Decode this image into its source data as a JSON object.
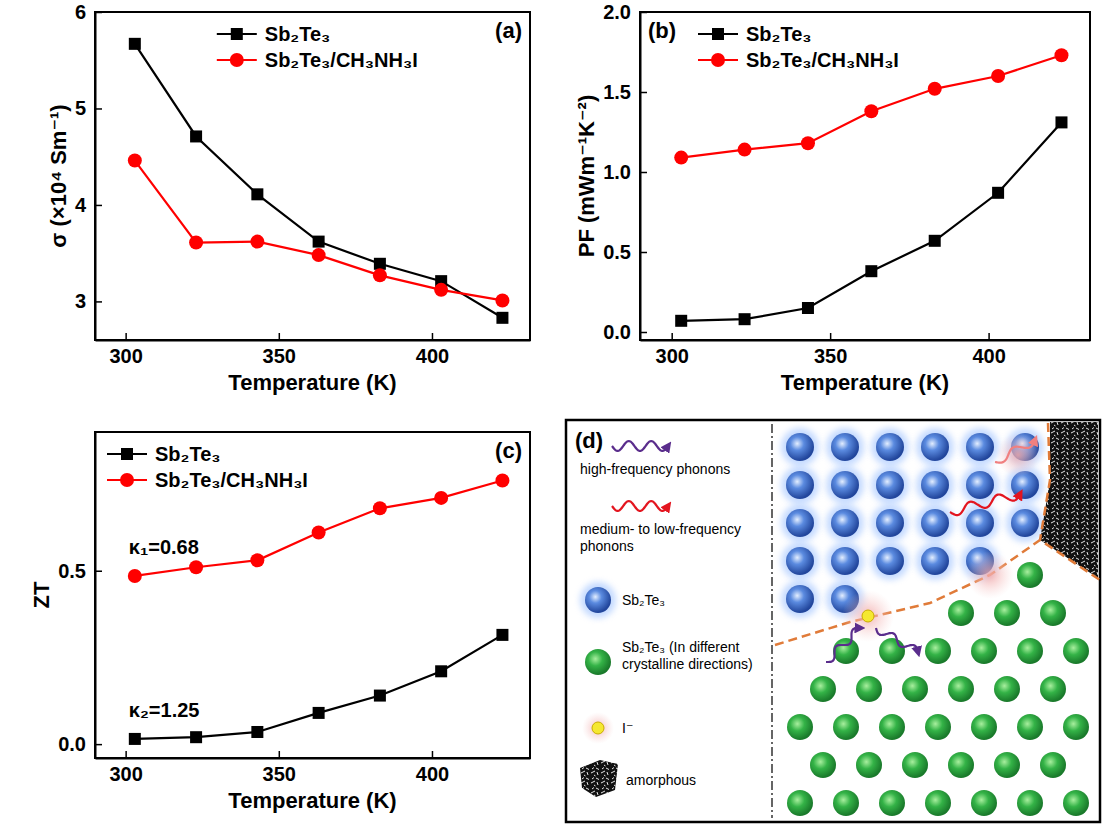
{
  "chart_data": [
    {
      "type": "line",
      "title": "(a)",
      "x_label": "Temperature (K)",
      "y_label": "σ (×10⁴ Sm⁻¹)",
      "x": [
        303,
        323,
        343,
        363,
        383,
        403,
        423
      ],
      "series": [
        {
          "name": "Sb₂Te₃",
          "color": "#000000",
          "marker": "square",
          "line_style": "solid",
          "values": [
            5.67,
            4.71,
            4.11,
            3.62,
            3.39,
            3.21,
            2.83
          ]
        },
        {
          "name": "Sb₂Te₃/CH₃NH₃I",
          "color": "#ff0000",
          "marker": "circle",
          "line_style": "solid",
          "values": [
            4.46,
            3.61,
            3.62,
            3.48,
            3.27,
            3.12,
            3.01
          ]
        }
      ],
      "xlim": [
        290,
        432
      ],
      "xticks": [
        300,
        350,
        400
      ],
      "ylim": [
        2.6,
        6.0
      ],
      "yticks": [
        3,
        4,
        5,
        6
      ],
      "grid": false,
      "legend": "top"
    },
    {
      "type": "line",
      "title": "(b)",
      "x_label": "Temperature (K)",
      "y_label": "PF (mWm⁻¹K⁻²)",
      "x": [
        303,
        323,
        343,
        363,
        383,
        403,
        423
      ],
      "series": [
        {
          "name": "Sb₂Te₃",
          "color": "#000000",
          "marker": "square",
          "line_style": "solid",
          "values": [
            0.07,
            0.08,
            0.15,
            0.38,
            0.57,
            0.87,
            1.31
          ]
        },
        {
          "name": "Sb₂Te₃/CH₃NH₃I",
          "color": "#ff0000",
          "marker": "circle",
          "line_style": "solid",
          "values": [
            1.09,
            1.14,
            1.18,
            1.38,
            1.52,
            1.6,
            1.73
          ]
        }
      ],
      "xlim": [
        290,
        432
      ],
      "xticks": [
        300,
        350,
        400
      ],
      "ylim": [
        -0.05,
        2.0
      ],
      "yticks": [
        {
          "value": 0,
          "label": "0.0"
        },
        0.5,
        {
          "value": 1,
          "label": "1.0"
        },
        1.5,
        {
          "value": 2,
          "label": "2.0"
        }
      ],
      "grid": false,
      "legend": "top-left"
    },
    {
      "type": "line",
      "title": "(c)",
      "x_label": "Temperature (K)",
      "y_label": "ZT",
      "x": [
        303,
        323,
        343,
        363,
        383,
        403,
        423
      ],
      "series": [
        {
          "name": "Sb₂Te₃",
          "color": "#000000",
          "marker": "square",
          "line_style": "solid",
          "values": [
            0.015,
            0.02,
            0.035,
            0.09,
            0.14,
            0.21,
            0.315
          ]
        },
        {
          "name": "Sb₂Te₃/CH₃NH₃I",
          "color": "#ff0000",
          "marker": "circle",
          "line_style": "solid",
          "values": [
            0.485,
            0.51,
            0.53,
            0.61,
            0.68,
            0.71,
            0.76
          ]
        }
      ],
      "xlim": [
        290,
        432
      ],
      "xticks": [
        300,
        350,
        400
      ],
      "ylim": [
        -0.04,
        0.9
      ],
      "yticks": [
        {
          "value": 0,
          "label": "0.0"
        },
        0.5
      ],
      "annotations": [
        "κ₁=0.68",
        "κ₂=1.25"
      ],
      "grid": false,
      "legend": "top-left"
    }
  ],
  "diagram": {
    "title": "(d)",
    "legend": [
      {
        "label": "high-frequency phonons"
      },
      {
        "label": "medium- to low-frequency phonons"
      },
      {
        "label": "Sb₂Te₃"
      },
      {
        "label": "Sb₂Te₃ (In different crystalline directions)"
      },
      {
        "label": "I⁻"
      },
      {
        "label": "amorphous"
      }
    ]
  }
}
